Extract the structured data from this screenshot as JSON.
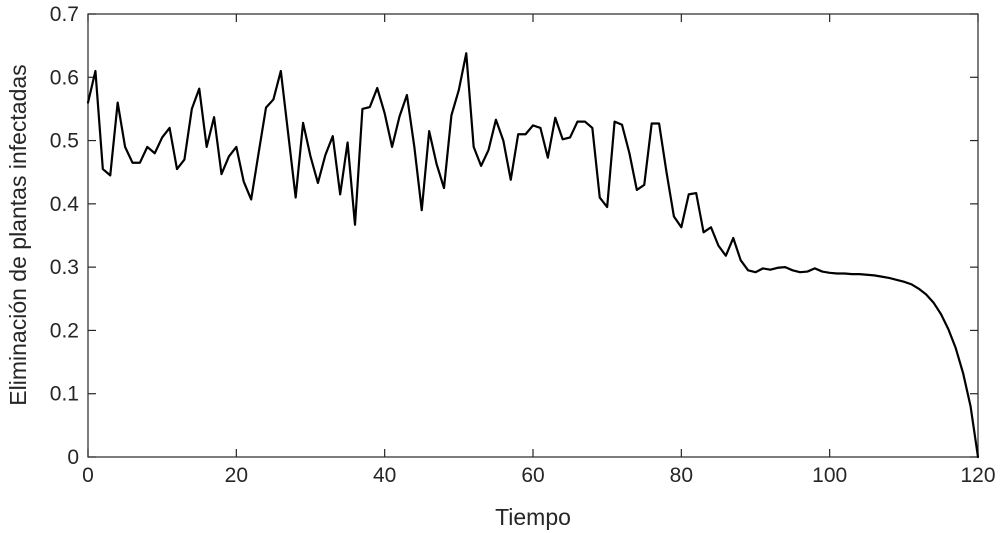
{
  "chart_data": {
    "type": "line",
    "title": "",
    "xlabel": "Tiempo",
    "ylabel": "Eliminación de plantas infectadas",
    "xlim": [
      0,
      120
    ],
    "ylim": [
      0,
      0.7
    ],
    "xticks": [
      "0",
      "20",
      "40",
      "60",
      "80",
      "100",
      "120"
    ],
    "yticks": [
      "0",
      "0.1",
      "0.2",
      "0.3",
      "0.4",
      "0.5",
      "0.6",
      "0.7"
    ],
    "grid": false,
    "line_color": "#000000",
    "series": [
      {
        "x": [
          0,
          1,
          2,
          3,
          4,
          5,
          6,
          7,
          8,
          9,
          10,
          11,
          12,
          13,
          14,
          15,
          16,
          17,
          18,
          19,
          20,
          21,
          22,
          23,
          24,
          25,
          26,
          27,
          28,
          29,
          30,
          31,
          32,
          33,
          34,
          35,
          36,
          37,
          38,
          39,
          40,
          41,
          42,
          43,
          44,
          45,
          46,
          47,
          48,
          49,
          50,
          51,
          52,
          53,
          54,
          55,
          56,
          57,
          58,
          59,
          60,
          61,
          62,
          63,
          64,
          65,
          66,
          67,
          68,
          69,
          70,
          71,
          72,
          73,
          74,
          75,
          76,
          77,
          78,
          79,
          80,
          81,
          82,
          83,
          84,
          85,
          86,
          87,
          88,
          89,
          90,
          91,
          92,
          93,
          94,
          95,
          96,
          97,
          98,
          99,
          100,
          101,
          102,
          103,
          104,
          105,
          106,
          107,
          108,
          109,
          110,
          111,
          112,
          113,
          114,
          115,
          116,
          117,
          118,
          119,
          120
        ],
        "values": [
          0.56,
          0.61,
          0.455,
          0.445,
          0.56,
          0.49,
          0.465,
          0.465,
          0.49,
          0.48,
          0.505,
          0.52,
          0.455,
          0.47,
          0.55,
          0.582,
          0.49,
          0.537,
          0.447,
          0.475,
          0.49,
          0.435,
          0.407,
          0.48,
          0.552,
          0.565,
          0.61,
          0.51,
          0.41,
          0.528,
          0.475,
          0.433,
          0.477,
          0.507,
          0.415,
          0.497,
          0.367,
          0.55,
          0.553,
          0.583,
          0.543,
          0.49,
          0.538,
          0.572,
          0.49,
          0.39,
          0.515,
          0.463,
          0.425,
          0.54,
          0.58,
          0.638,
          0.49,
          0.46,
          0.485,
          0.533,
          0.5,
          0.438,
          0.51,
          0.51,
          0.524,
          0.52,
          0.473,
          0.536,
          0.502,
          0.505,
          0.53,
          0.53,
          0.52,
          0.41,
          0.395,
          0.53,
          0.525,
          0.48,
          0.422,
          0.43,
          0.527,
          0.527,
          0.45,
          0.38,
          0.363,
          0.415,
          0.417,
          0.355,
          0.363,
          0.334,
          0.318,
          0.346,
          0.311,
          0.295,
          0.292,
          0.298,
          0.296,
          0.299,
          0.3,
          0.295,
          0.292,
          0.293,
          0.298,
          0.293,
          0.291,
          0.29,
          0.29,
          0.289,
          0.289,
          0.288,
          0.287,
          0.285,
          0.283,
          0.28,
          0.277,
          0.273,
          0.266,
          0.257,
          0.244,
          0.226,
          0.202,
          0.172,
          0.132,
          0.08,
          0.0
        ]
      }
    ]
  }
}
